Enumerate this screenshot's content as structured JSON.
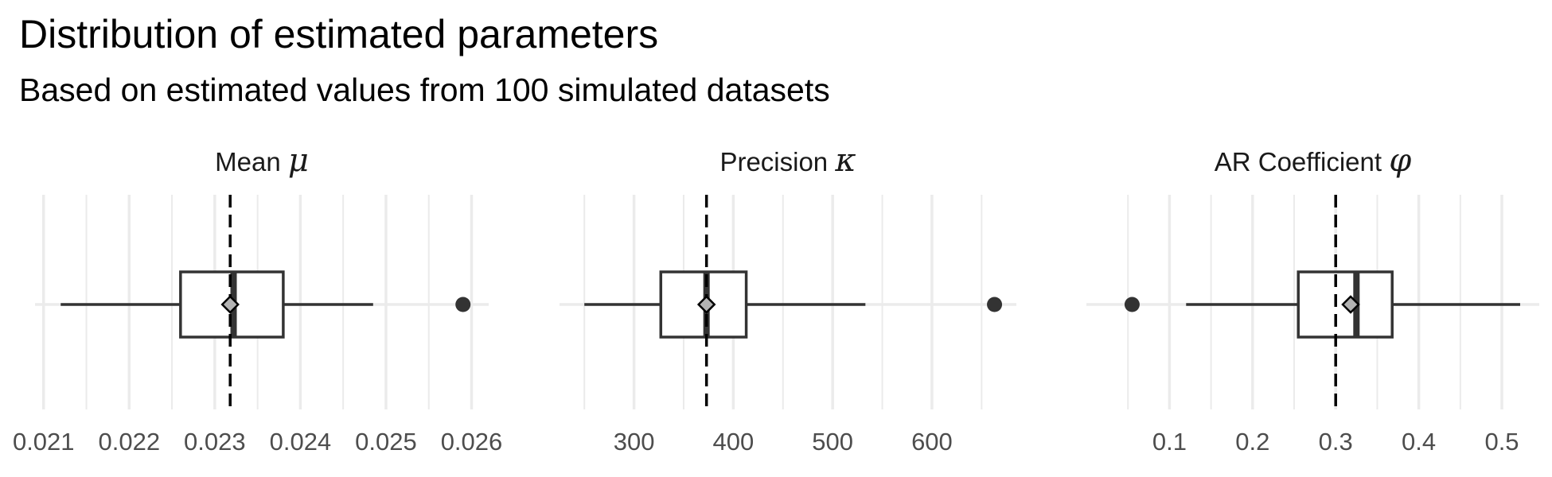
{
  "title": "Distribution of estimated parameters",
  "subtitle": "Based on estimated values from 100 simulated datasets",
  "colors": {
    "grid": "#ebebeb",
    "box_line": "#333333",
    "outlier": "#333333",
    "mean_marker_fill": "#b3b3b3",
    "reference_line": "#000000"
  },
  "chart_data": [
    {
      "type": "boxplot",
      "panel": "Mean μ",
      "strip_label": "Mean",
      "strip_symbol": "μ",
      "xlim": [
        0.0209,
        0.0262
      ],
      "ticks": [
        0.021,
        0.022,
        0.023,
        0.024,
        0.025,
        0.026
      ],
      "tick_labels": [
        "0.021",
        "0.022",
        "0.023",
        "0.024",
        "0.025",
        "0.026"
      ],
      "whisker_low": 0.0212,
      "q1": 0.0226,
      "median": 0.02322,
      "q3": 0.0238,
      "whisker_high": 0.02485,
      "mean": 0.02318,
      "outliers": [
        0.0259
      ],
      "reference": 0.02318
    },
    {
      "type": "boxplot",
      "panel": "Precision κ",
      "strip_label": "Precision",
      "strip_symbol": "κ",
      "xlim": [
        225,
        685
      ],
      "ticks": [
        300,
        400,
        500,
        600
      ],
      "tick_labels": [
        "300",
        "400",
        "500",
        "600"
      ],
      "whisker_low": 250,
      "q1": 327,
      "median": 373,
      "q3": 413,
      "whisker_high": 533,
      "mean": 373,
      "outliers": [
        663
      ],
      "reference": 373
    },
    {
      "type": "boxplot",
      "panel": "AR Coefficient φ",
      "strip_label": "AR Coefficient",
      "strip_symbol": "φ",
      "xlim": [
        0.0,
        0.545
      ],
      "ticks": [
        0.1,
        0.2,
        0.3,
        0.4,
        0.5
      ],
      "tick_labels": [
        "0.1",
        "0.2",
        "0.3",
        "0.4",
        "0.5"
      ],
      "whisker_low": 0.12,
      "q1": 0.255,
      "median": 0.325,
      "q3": 0.368,
      "whisker_high": 0.522,
      "mean": 0.318,
      "outliers": [
        0.055
      ],
      "reference": 0.3
    }
  ]
}
